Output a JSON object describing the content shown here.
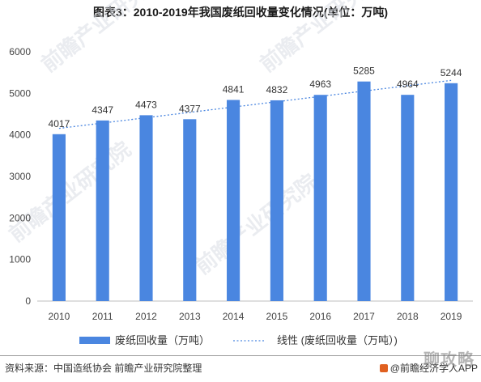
{
  "title": "图表3：2010-2019年我国废纸回收量变化情况(单位：万吨)",
  "chart_data": {
    "type": "bar",
    "categories": [
      "2010",
      "2011",
      "2012",
      "2013",
      "2014",
      "2015",
      "2016",
      "2017",
      "2018",
      "2019"
    ],
    "series": [
      {
        "name": "废纸回收量（万吨）",
        "values": [
          4017,
          4347,
          4473,
          4377,
          4841,
          4832,
          4963,
          5285,
          4964,
          5244
        ]
      }
    ],
    "trendline": {
      "name": "线性 (废纸回收量（万吨）)",
      "style": "dotted"
    },
    "ylim": [
      0,
      6000
    ],
    "yticks": [
      0,
      1000,
      2000,
      3000,
      4000,
      5000,
      6000
    ],
    "grid": false,
    "legend": "bottom",
    "colors": {
      "bar": "#4a86e0",
      "trend": "#4a86e0",
      "axis": "#bfbfbf"
    }
  },
  "watermarks": [
    "前瞻产业研究院",
    "前瞻产业研究院",
    "前瞻产业研究院",
    "前瞻产业研究院"
  ],
  "source": "资料来源：中国造纸协会 前瞻产业研究院整理",
  "brand": "@前瞻经济学人APP",
  "corner_watermark": "聊攻略"
}
